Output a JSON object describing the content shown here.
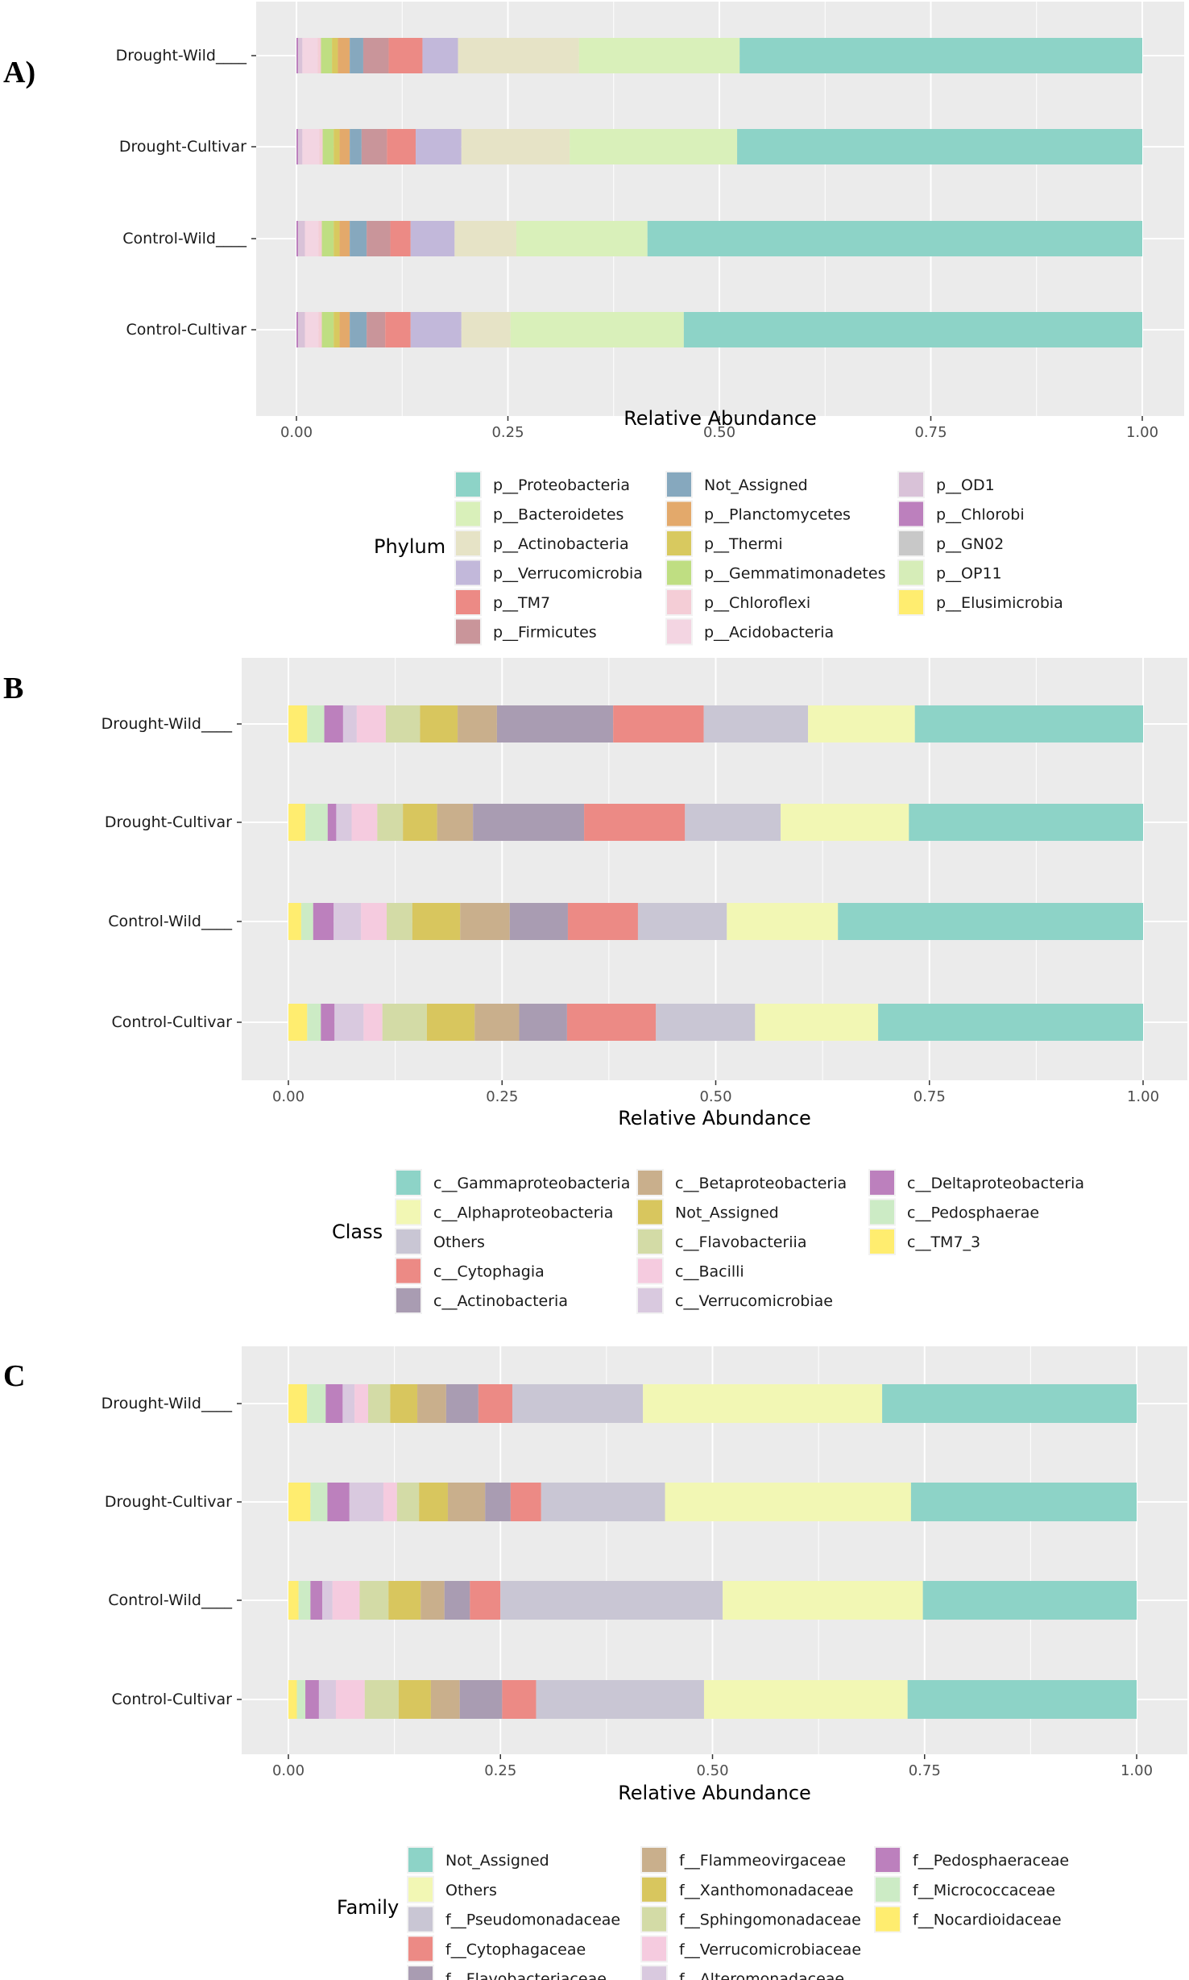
{
  "chart_data": [
    {
      "panel": "A)",
      "type": "bar",
      "orientation": "horizontal",
      "stacked": true,
      "xlabel": "Relative Abundance",
      "xlim": [
        0,
        1
      ],
      "xticks": [
        "0.00",
        "0.25",
        "0.50",
        "0.75",
        "1.00"
      ],
      "grid": true,
      "legend_title": "Phylum",
      "legend_position": "bottom",
      "categories": [
        "Drought-Wild____",
        "Drought-Cultivar",
        "Control-Wild____",
        "Control-Cultivar"
      ],
      "series": [
        {
          "name": "p__Elusimicrobia",
          "color": "#FFED6F",
          "values": [
            0.0,
            0.0,
            0.0,
            0.0
          ]
        },
        {
          "name": "p__OP11",
          "color": "#D6EDB8",
          "values": [
            0.0,
            0.0,
            0.0,
            0.0
          ]
        },
        {
          "name": "p__GN02",
          "color": "#C8C8C8",
          "values": [
            0.0,
            0.0,
            0.0,
            0.0
          ]
        },
        {
          "name": "p__Chlorobi",
          "color": "#BC80BD",
          "values": [
            0.002,
            0.002,
            0.002,
            0.002
          ]
        },
        {
          "name": "p__OD1",
          "color": "#D9C2D8",
          "values": [
            0.005,
            0.005,
            0.008,
            0.008
          ]
        },
        {
          "name": "p__Acidobacteria",
          "color": "#F3D5E2",
          "values": [
            0.018,
            0.02,
            0.016,
            0.016
          ]
        },
        {
          "name": "p__Chloroflexi",
          "color": "#F4CDD6",
          "values": [
            0.004,
            0.004,
            0.004,
            0.004
          ]
        },
        {
          "name": "p__Gemmatimonadetes",
          "color": "#BFDE82",
          "values": [
            0.013,
            0.013,
            0.014,
            0.014
          ]
        },
        {
          "name": "p__Thermi",
          "color": "#D8C95F",
          "values": [
            0.007,
            0.007,
            0.007,
            0.007
          ]
        },
        {
          "name": "p__Planctomycetes",
          "color": "#E3A96B",
          "values": [
            0.014,
            0.012,
            0.012,
            0.012
          ]
        },
        {
          "name": "p__Not_Assigned",
          "color": "#86A8BE",
          "values": [
            0.016,
            0.014,
            0.02,
            0.02
          ]
        },
        {
          "name": "p__Firmicutes",
          "color": "#C9959A",
          "values": [
            0.03,
            0.03,
            0.028,
            0.022
          ]
        },
        {
          "name": "p__TM7",
          "color": "#EC8A85",
          "values": [
            0.04,
            0.034,
            0.024,
            0.03
          ]
        },
        {
          "name": "p__Verrucomicrobia",
          "color": "#C2B8DA",
          "values": [
            0.042,
            0.054,
            0.052,
            0.06
          ]
        },
        {
          "name": "p__Actinobacteria",
          "color": "#E6E3C6",
          "values": [
            0.143,
            0.128,
            0.073,
            0.058
          ]
        },
        {
          "name": "p__Bacteroidetes",
          "color": "#D9F0BA",
          "values": [
            0.19,
            0.198,
            0.155,
            0.205
          ]
        },
        {
          "name": "p__Proteobacteria",
          "color": "#8DD3C7",
          "values": [
            0.476,
            0.479,
            0.585,
            0.542
          ]
        }
      ],
      "legend_order": [
        "p__Proteobacteria",
        "p__Bacteroidetes",
        "p__Actinobacteria",
        "p__Verrucomicrobia",
        "p__TM7",
        "p__Firmicutes",
        "Not_Assigned",
        "p__Planctomycetes",
        "p__Thermi",
        "p__Gemmatimonadetes",
        "p__Chloroflexi",
        "p__Acidobacteria",
        "p__OD1",
        "p__Chlorobi",
        "p__GN02",
        "p__OP11",
        "p__Elusimicrobia"
      ]
    },
    {
      "panel": "B",
      "type": "bar",
      "orientation": "horizontal",
      "stacked": true,
      "xlabel": "Relative Abundance",
      "xlim": [
        0,
        1
      ],
      "xticks": [
        "0.00",
        "0.25",
        "0.50",
        "0.75",
        "1.00"
      ],
      "grid": true,
      "legend_title": "Class",
      "legend_position": "bottom",
      "categories": [
        "Drought-Wild____",
        "Drought-Cultivar",
        "Control-Wild____",
        "Control-Cultivar"
      ],
      "series": [
        {
          "name": "c__TM7_3",
          "color": "#FFED6F",
          "values": [
            0.022,
            0.02,
            0.015,
            0.022
          ]
        },
        {
          "name": "c__Pedosphaerae",
          "color": "#CCEBC5",
          "values": [
            0.02,
            0.026,
            0.014,
            0.016
          ]
        },
        {
          "name": "c__Deltaproteobacteria",
          "color": "#BC80BD",
          "values": [
            0.022,
            0.01,
            0.024,
            0.016
          ]
        },
        {
          "name": "c__Verrucomicrobiae",
          "color": "#D9C9DF",
          "values": [
            0.016,
            0.018,
            0.032,
            0.034
          ]
        },
        {
          "name": "c__Bacilli",
          "color": "#F5CBDF",
          "values": [
            0.034,
            0.03,
            0.03,
            0.022
          ]
        },
        {
          "name": "c__Flavobacteriia",
          "color": "#D3DBA6",
          "values": [
            0.04,
            0.03,
            0.03,
            0.052
          ]
        },
        {
          "name": "Not_Assigned",
          "color": "#D8C65E",
          "values": [
            0.044,
            0.04,
            0.056,
            0.056
          ]
        },
        {
          "name": "c__Betaproteobacteria",
          "color": "#C9AF8C",
          "values": [
            0.046,
            0.042,
            0.058,
            0.052
          ]
        },
        {
          "name": "c__Actinobacteria",
          "color": "#A99CB2",
          "values": [
            0.136,
            0.13,
            0.068,
            0.056
          ]
        },
        {
          "name": "c__Cytophagia",
          "color": "#EC8A85",
          "values": [
            0.106,
            0.118,
            0.082,
            0.104
          ]
        },
        {
          "name": "Others",
          "color": "#C9C6D4",
          "values": [
            0.122,
            0.112,
            0.104,
            0.116
          ]
        },
        {
          "name": "c__Alphaproteobacteria",
          "color": "#F2F7B4",
          "values": [
            0.125,
            0.15,
            0.13,
            0.144
          ]
        },
        {
          "name": "c__Gammaproteobacteria",
          "color": "#8DD3C7",
          "values": [
            0.267,
            0.274,
            0.357,
            0.31
          ]
        }
      ],
      "legend_order": [
        "c__Gammaproteobacteria",
        "c__Alphaproteobacteria",
        "Others",
        "c__Cytophagia",
        "c__Actinobacteria",
        "c__Betaproteobacteria",
        "Not_Assigned",
        "c__Flavobacteriia",
        "c__Bacilli",
        "c__Verrucomicrobiae",
        "c__Deltaproteobacteria",
        "c__Pedosphaerae",
        "c__TM7_3"
      ]
    },
    {
      "panel": "C",
      "type": "bar",
      "orientation": "horizontal",
      "stacked": true,
      "xlabel": "Relative Abundance",
      "xlim": [
        0,
        1
      ],
      "xticks": [
        "0.00",
        "0.25",
        "0.50",
        "0.75",
        "1.00"
      ],
      "grid": true,
      "legend_title": "Family",
      "legend_position": "bottom",
      "categories": [
        "Drought-Wild____",
        "Drought-Cultivar",
        "Control-Wild____",
        "Control-Cultivar"
      ],
      "series": [
        {
          "name": "f__Nocardioidaceae",
          "color": "#FFED6F",
          "values": [
            0.022,
            0.026,
            0.012,
            0.01
          ]
        },
        {
          "name": "f__Micrococcaceae",
          "color": "#CCEBC5",
          "values": [
            0.022,
            0.02,
            0.014,
            0.01
          ]
        },
        {
          "name": "f__Pedosphaeraceae",
          "color": "#BC80BD",
          "values": [
            0.02,
            0.026,
            0.014,
            0.016
          ]
        },
        {
          "name": "f__Alteromonadaceae",
          "color": "#D9C9DF",
          "values": [
            0.014,
            0.04,
            0.012,
            0.02
          ]
        },
        {
          "name": "f__Verrucomicrobiaceae",
          "color": "#F5CBDF",
          "values": [
            0.016,
            0.016,
            0.032,
            0.034
          ]
        },
        {
          "name": "f__Sphingomonadaceae",
          "color": "#D3DBA6",
          "values": [
            0.026,
            0.026,
            0.034,
            0.04
          ]
        },
        {
          "name": "f__Xanthomonadaceae",
          "color": "#D8C65E",
          "values": [
            0.032,
            0.034,
            0.038,
            0.038
          ]
        },
        {
          "name": "f__Flammeovirgaceae",
          "color": "#C9AF8C",
          "values": [
            0.034,
            0.044,
            0.028,
            0.034
          ]
        },
        {
          "name": "f__Flavobacteriaceae",
          "color": "#A99CB2",
          "values": [
            0.038,
            0.03,
            0.03,
            0.05
          ]
        },
        {
          "name": "f__Cytophagaceae",
          "color": "#EC8A85",
          "values": [
            0.04,
            0.036,
            0.036,
            0.04
          ]
        },
        {
          "name": "f__Pseudomonadaceae",
          "color": "#C9C6D4",
          "values": [
            0.154,
            0.146,
            0.262,
            0.198
          ]
        },
        {
          "name": "Others",
          "color": "#F2F7B4",
          "values": [
            0.282,
            0.29,
            0.236,
            0.24
          ]
        },
        {
          "name": "Not_Assigned",
          "color": "#8DD3C7",
          "values": [
            0.3,
            0.266,
            0.252,
            0.27
          ]
        }
      ],
      "legend_order": [
        "Not_Assigned",
        "Others",
        "f__Pseudomonadaceae",
        "f__Cytophagaceae",
        "f__Flavobacteriaceae",
        "f__Flammeovirgaceae",
        "f__Xanthomonadaceae",
        "f__Sphingomonadaceae",
        "f__Verrucomicrobiaceae",
        "f__Alteromonadaceae",
        "f__Pedosphaeraceae",
        "f__Micrococcaceae",
        "f__Nocardioidaceae"
      ]
    }
  ]
}
